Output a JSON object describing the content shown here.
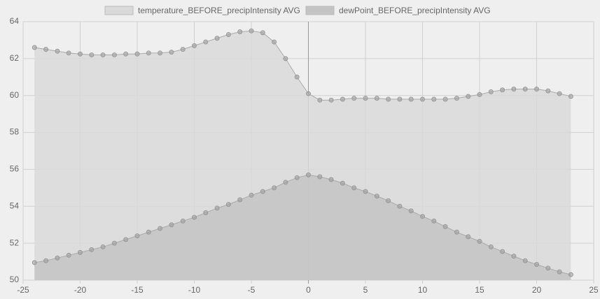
{
  "chart_data": {
    "type": "area",
    "x": [
      -24,
      -23,
      -22,
      -21,
      -20,
      -19,
      -18,
      -17,
      -16,
      -15,
      -14,
      -13,
      -12,
      -11,
      -10,
      -9,
      -8,
      -7,
      -6,
      -5,
      -4,
      -3,
      -2,
      -1,
      0,
      1,
      2,
      3,
      4,
      5,
      6,
      7,
      8,
      9,
      10,
      11,
      12,
      13,
      14,
      15,
      16,
      17,
      18,
      19,
      20,
      21,
      22,
      23
    ],
    "series": [
      {
        "name": "temperature_BEFORE_precipIntensity AVG",
        "color": "#d9d9d9",
        "values": [
          62.6,
          62.5,
          62.4,
          62.3,
          62.25,
          62.2,
          62.2,
          62.2,
          62.25,
          62.25,
          62.3,
          62.3,
          62.35,
          62.5,
          62.7,
          62.9,
          63.1,
          63.3,
          63.45,
          63.5,
          63.4,
          62.9,
          62.0,
          61.0,
          60.1,
          59.75,
          59.75,
          59.8,
          59.85,
          59.85,
          59.85,
          59.8,
          59.8,
          59.8,
          59.8,
          59.8,
          59.8,
          59.85,
          59.95,
          60.05,
          60.2,
          60.3,
          60.35,
          60.35,
          60.35,
          60.25,
          60.1,
          59.95
        ]
      },
      {
        "name": "dewPoint_BEFORE_precipIntensity AVG",
        "color": "#c4c4c4",
        "values": [
          50.95,
          51.05,
          51.2,
          51.35,
          51.5,
          51.65,
          51.8,
          52.0,
          52.2,
          52.4,
          52.6,
          52.8,
          53.0,
          53.2,
          53.4,
          53.65,
          53.9,
          54.1,
          54.35,
          54.6,
          54.8,
          55.0,
          55.3,
          55.55,
          55.7,
          55.6,
          55.45,
          55.25,
          55.0,
          54.8,
          54.55,
          54.3,
          54.0,
          53.75,
          53.45,
          53.2,
          52.9,
          52.6,
          52.35,
          52.1,
          51.8,
          51.55,
          51.3,
          51.05,
          50.85,
          50.65,
          50.45,
          50.3
        ]
      }
    ],
    "xlim": [
      -25,
      25
    ],
    "xticks": [
      -25,
      -20,
      -15,
      -10,
      -5,
      0,
      5,
      10,
      15,
      20,
      25
    ],
    "ylim": [
      50,
      64
    ],
    "yticks": [
      50,
      52,
      54,
      56,
      58,
      60,
      62,
      64
    ],
    "grid": true,
    "legend": "top"
  }
}
